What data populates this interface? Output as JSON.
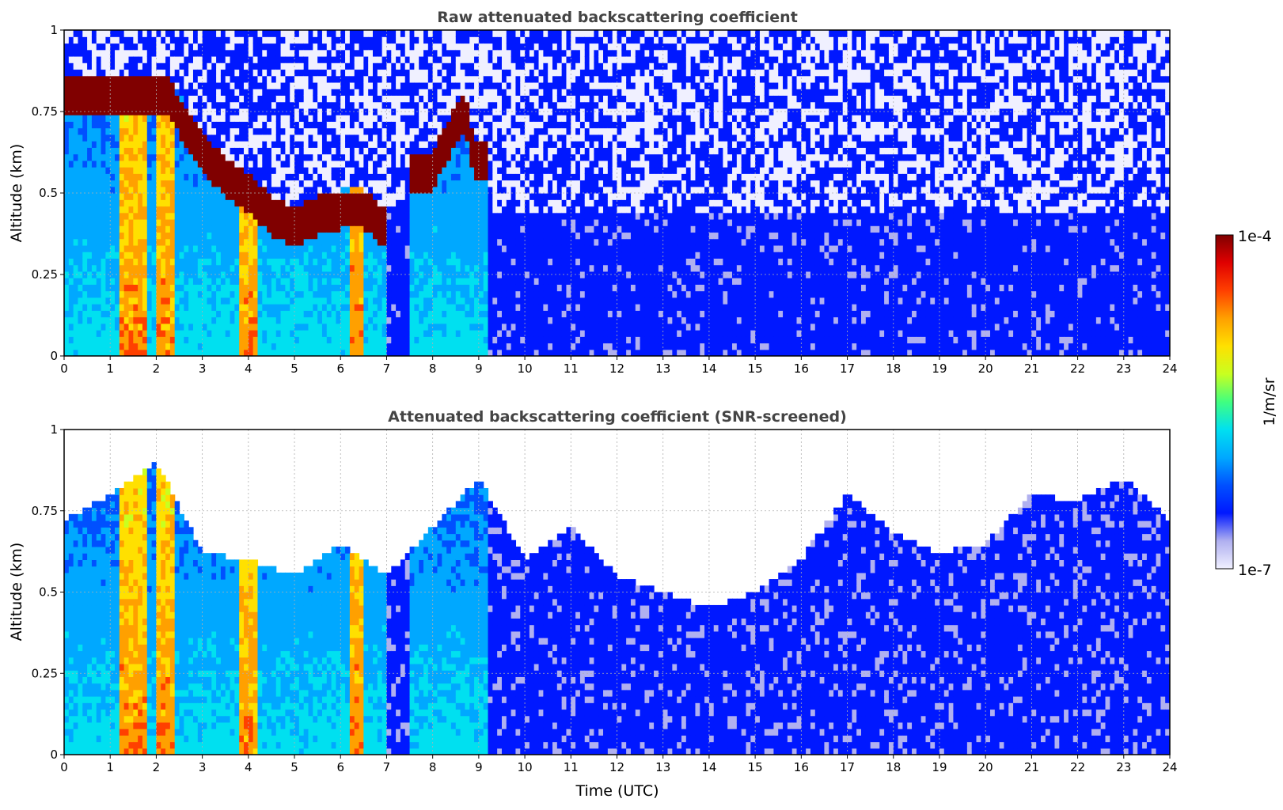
{
  "figure": {
    "colorbar": {
      "label": "1/m/sr",
      "min_label": "1e-7",
      "max_label": "1e-4",
      "scale": "log",
      "colormap": "jet",
      "colors": [
        "#f0f0ff",
        "#b0b0f0",
        "#0018ff",
        "#0050ff",
        "#00a8ff",
        "#00e0f0",
        "#40ff80",
        "#c8ff20",
        "#ffe000",
        "#ffa000",
        "#ff4000",
        "#e00000",
        "#800000"
      ]
    }
  },
  "chart_data": [
    {
      "type": "heatmap",
      "title": "Raw attenuated backscattering coefficient",
      "xlabel": "",
      "ylabel": "Altitude (km)",
      "xlim": [
        0,
        24
      ],
      "ylim": [
        0,
        1
      ],
      "xticks": [
        "0",
        "1",
        "2",
        "3",
        "4",
        "5",
        "6",
        "7",
        "8",
        "9",
        "10",
        "11",
        "12",
        "13",
        "14",
        "15",
        "16",
        "17",
        "18",
        "19",
        "20",
        "21",
        "22",
        "23",
        "24"
      ],
      "yticks": [
        "0",
        "0.25",
        "0.5",
        "0.75",
        "1"
      ],
      "grid": true,
      "features": {
        "cloud_top_km": [
          [
            2.2,
            0.8
          ],
          [
            2.6,
            0.72
          ],
          [
            3.0,
            0.62
          ],
          [
            3.5,
            0.55
          ],
          [
            4.0,
            0.5
          ],
          [
            4.5,
            0.43
          ],
          [
            5.0,
            0.4
          ],
          [
            5.5,
            0.43
          ],
          [
            6.0,
            0.45
          ],
          [
            6.5,
            0.45
          ],
          [
            6.9,
            0.4
          ]
        ],
        "cloud_top_2_km": [
          [
            7.6,
            0.55
          ],
          [
            8.0,
            0.57
          ],
          [
            8.4,
            0.68
          ],
          [
            8.7,
            0.75
          ],
          [
            8.9,
            0.6
          ]
        ],
        "rain_columns_h": [
          [
            1.2,
            1.8
          ],
          [
            2.0,
            2.4
          ],
          [
            3.8,
            4.2
          ],
          [
            6.2,
            6.5
          ]
        ],
        "signal_extinction_h": 9.2
      }
    },
    {
      "type": "heatmap",
      "title": "Attenuated backscattering coefficient (SNR-screened)",
      "xlabel": "Time (UTC)",
      "ylabel": "Altitude (km)",
      "xlim": [
        0,
        24
      ],
      "ylim": [
        0,
        1
      ],
      "xticks": [
        "0",
        "1",
        "2",
        "3",
        "4",
        "5",
        "6",
        "7",
        "8",
        "9",
        "10",
        "11",
        "12",
        "13",
        "14",
        "15",
        "16",
        "17",
        "18",
        "19",
        "20",
        "21",
        "22",
        "23",
        "24"
      ],
      "yticks": [
        "0",
        "0.25",
        "0.5",
        "0.75",
        "1"
      ],
      "grid": true,
      "features": {
        "screened_top_km": [
          [
            0,
            0.72
          ],
          [
            1,
            0.8
          ],
          [
            2,
            0.9
          ],
          [
            3,
            0.62
          ],
          [
            4,
            0.6
          ],
          [
            5,
            0.55
          ],
          [
            6,
            0.65
          ],
          [
            7,
            0.55
          ],
          [
            8,
            0.7
          ],
          [
            9,
            0.85
          ],
          [
            10,
            0.6
          ],
          [
            11,
            0.7
          ],
          [
            12,
            0.55
          ],
          [
            13,
            0.5
          ],
          [
            14,
            0.45
          ],
          [
            15,
            0.5
          ],
          [
            16,
            0.6
          ],
          [
            17,
            0.8
          ],
          [
            18,
            0.68
          ],
          [
            19,
            0.62
          ],
          [
            20,
            0.65
          ],
          [
            21,
            0.8
          ],
          [
            22,
            0.78
          ],
          [
            23,
            0.85
          ],
          [
            24,
            0.72
          ]
        ]
      }
    }
  ]
}
